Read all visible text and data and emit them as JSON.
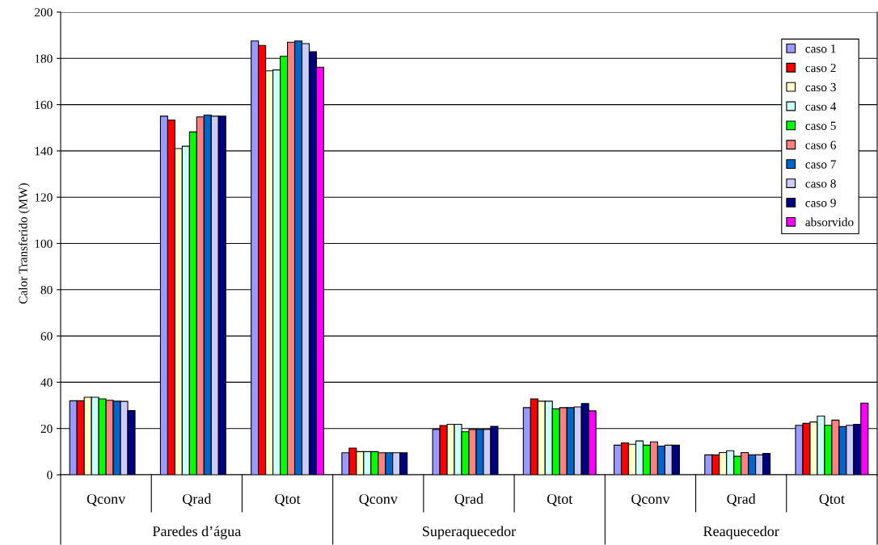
{
  "chart_data": {
    "type": "bar",
    "ylabel": "Calor Transferido (MW)",
    "categories": [
      "Qconv",
      "Qrad",
      "Qtot",
      "Qconv",
      "Qrad",
      "Qtot",
      "Qconv",
      "Qrad",
      "Qtot"
    ],
    "annotations": [
      "Paredes d’água",
      "Superaquecedor",
      "Reaquecedor"
    ],
    "series": [
      {
        "name": "caso 1",
        "color": "#9999ff",
        "values": [
          32,
          155,
          187.5,
          9.5,
          19.6,
          29,
          12.8,
          8.6,
          21.4
        ]
      },
      {
        "name": "caso 2",
        "color": "#ff0000",
        "values": [
          32,
          153.3,
          185.6,
          11.5,
          21.3,
          32.8,
          13.8,
          8.6,
          22.2
        ]
      },
      {
        "name": "caso 3",
        "color": "#ffffcc",
        "values": [
          33.5,
          141,
          174.6,
          10,
          21.8,
          31.8,
          13.2,
          9.6,
          22.8
        ]
      },
      {
        "name": "caso 4",
        "color": "#ccffff",
        "values": [
          33.5,
          142,
          175,
          10,
          21.8,
          31.8,
          14.6,
          10.4,
          25.4
        ]
      },
      {
        "name": "caso 5",
        "color": "#00ff00",
        "values": [
          32.8,
          148.2,
          180.9,
          10,
          18.6,
          28.5,
          12.8,
          8,
          21.4
        ]
      },
      {
        "name": "caso 6",
        "color": "#ff8080",
        "values": [
          32.2,
          154.7,
          187,
          9.5,
          19.6,
          29,
          14.2,
          9.6,
          23.6
        ]
      },
      {
        "name": "caso 7",
        "color": "#0066cc",
        "values": [
          31.8,
          155.5,
          187.5,
          9.5,
          19.6,
          29,
          12.4,
          8.6,
          20.8
        ]
      },
      {
        "name": "caso 8",
        "color": "#ccccff",
        "values": [
          31.7,
          155,
          186.4,
          9.5,
          19.6,
          29.3,
          12.8,
          8.6,
          21.4
        ]
      },
      {
        "name": "caso 9",
        "color": "#000080",
        "values": [
          27.7,
          155,
          182.9,
          9.5,
          20.9,
          30.8,
          12.8,
          9.2,
          21.8
        ]
      },
      {
        "name": "absorvido",
        "color": "#ff00ff",
        "values": [
          null,
          null,
          176.2,
          null,
          null,
          27.6,
          null,
          null,
          31
        ]
      }
    ],
    "ylim": [
      0,
      200
    ],
    "yticks": [
      0,
      20,
      40,
      60,
      80,
      100,
      120,
      140,
      160,
      180,
      200
    ],
    "grid": "y",
    "legend": "top right"
  }
}
